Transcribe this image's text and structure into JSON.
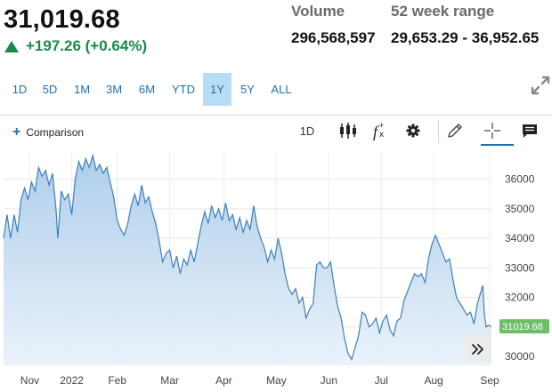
{
  "quote": {
    "price": "31,019.68",
    "change": "+197.26 (+0.64%)",
    "volume_label": "Volume",
    "volume_value": "296,568,597",
    "range_label": "52 week range",
    "range_value": "29,653.29 - 36,952.65"
  },
  "ranges": [
    {
      "label": "1D",
      "active": false
    },
    {
      "label": "5D",
      "active": false
    },
    {
      "label": "1M",
      "active": false
    },
    {
      "label": "3M",
      "active": false
    },
    {
      "label": "6M",
      "active": false
    },
    {
      "label": "YTD",
      "active": false
    },
    {
      "label": "1Y",
      "active": true
    },
    {
      "label": "5Y",
      "active": false
    },
    {
      "label": "ALL",
      "active": false
    }
  ],
  "toolbar": {
    "comparison_label": "Comparison",
    "interval_label": "1D",
    "icons": [
      "candlestick-icon",
      "function-icon",
      "gear-icon",
      "pencil-icon",
      "crosshair-icon",
      "comment-icon"
    ]
  },
  "colors": {
    "positive": "#168a4a",
    "accent": "#1f6fb2",
    "active_tab": "#b7dcf6",
    "line": "#3d7fb8",
    "price_tag": "#6cbf6a"
  },
  "chart_data": {
    "type": "area",
    "y_ticks": [
      30000,
      31000,
      32000,
      33000,
      34000,
      35000,
      36000
    ],
    "ylim": [
      29700,
      36950
    ],
    "x_tick_labels": [
      "Nov",
      "2022",
      "Feb",
      "Mar",
      "Apr",
      "May",
      "Jun",
      "Jul",
      "Aug",
      "Sep"
    ],
    "x_tick_positions": [
      15,
      39,
      65,
      95,
      126,
      156,
      186,
      216,
      246,
      278
    ],
    "last_price_label": "31019.68",
    "grid": true,
    "points": [
      [
        0,
        34000
      ],
      [
        2,
        34800
      ],
      [
        4,
        34000
      ],
      [
        6,
        34800
      ],
      [
        8,
        34200
      ],
      [
        10,
        35300
      ],
      [
        12,
        35700
      ],
      [
        14,
        35300
      ],
      [
        16,
        35900
      ],
      [
        18,
        35600
      ],
      [
        20,
        36400
      ],
      [
        22,
        36100
      ],
      [
        24,
        36300
      ],
      [
        26,
        35800
      ],
      [
        28,
        36200
      ],
      [
        30,
        35000
      ],
      [
        31,
        34000
      ],
      [
        33,
        35600
      ],
      [
        35,
        35300
      ],
      [
        37,
        35500
      ],
      [
        39,
        34800
      ],
      [
        41,
        36000
      ],
      [
        43,
        36600
      ],
      [
        45,
        36300
      ],
      [
        47,
        36700
      ],
      [
        49,
        36400
      ],
      [
        51,
        36800
      ],
      [
        53,
        36300
      ],
      [
        55,
        36500
      ],
      [
        57,
        36200
      ],
      [
        59,
        36400
      ],
      [
        61,
        35900
      ],
      [
        63,
        35400
      ],
      [
        65,
        34600
      ],
      [
        67,
        34300
      ],
      [
        69,
        34100
      ],
      [
        71,
        34500
      ],
      [
        73,
        35100
      ],
      [
        75,
        35500
      ],
      [
        77,
        35100
      ],
      [
        79,
        35800
      ],
      [
        81,
        35200
      ],
      [
        83,
        35400
      ],
      [
        85,
        34900
      ],
      [
        87,
        34500
      ],
      [
        89,
        33900
      ],
      [
        91,
        33200
      ],
      [
        93,
        33500
      ],
      [
        95,
        33600
      ],
      [
        97,
        33000
      ],
      [
        99,
        33400
      ],
      [
        101,
        32800
      ],
      [
        103,
        33300
      ],
      [
        105,
        33100
      ],
      [
        107,
        33600
      ],
      [
        109,
        33200
      ],
      [
        111,
        33800
      ],
      [
        113,
        34400
      ],
      [
        115,
        34900
      ],
      [
        117,
        34500
      ],
      [
        119,
        35100
      ],
      [
        121,
        34700
      ],
      [
        123,
        35000
      ],
      [
        125,
        34600
      ],
      [
        127,
        35200
      ],
      [
        129,
        34600
      ],
      [
        131,
        34800
      ],
      [
        133,
        34300
      ],
      [
        135,
        34700
      ],
      [
        137,
        34200
      ],
      [
        139,
        34600
      ],
      [
        141,
        34300
      ],
      [
        143,
        35100
      ],
      [
        145,
        34400
      ],
      [
        147,
        34000
      ],
      [
        149,
        33700
      ],
      [
        151,
        33200
      ],
      [
        153,
        33600
      ],
      [
        155,
        33300
      ],
      [
        157,
        34000
      ],
      [
        159,
        33500
      ],
      [
        161,
        32800
      ],
      [
        163,
        32300
      ],
      [
        165,
        32100
      ],
      [
        167,
        32300
      ],
      [
        169,
        31800
      ],
      [
        171,
        32000
      ],
      [
        173,
        31300
      ],
      [
        175,
        31600
      ],
      [
        177,
        31800
      ],
      [
        179,
        33100
      ],
      [
        181,
        33200
      ],
      [
        183,
        33000
      ],
      [
        185,
        33000
      ],
      [
        187,
        33200
      ],
      [
        189,
        32400
      ],
      [
        191,
        31700
      ],
      [
        193,
        31300
      ],
      [
        195,
        30600
      ],
      [
        197,
        30100
      ],
      [
        199,
        29900
      ],
      [
        201,
        30300
      ],
      [
        203,
        30700
      ],
      [
        205,
        31500
      ],
      [
        207,
        31400
      ],
      [
        209,
        31000
      ],
      [
        211,
        31100
      ],
      [
        213,
        31300
      ],
      [
        215,
        30800
      ],
      [
        217,
        31200
      ],
      [
        219,
        31400
      ],
      [
        221,
        30900
      ],
      [
        223,
        30700
      ],
      [
        225,
        31200
      ],
      [
        227,
        31300
      ],
      [
        229,
        31900
      ],
      [
        231,
        32200
      ],
      [
        233,
        32500
      ],
      [
        235,
        32800
      ],
      [
        237,
        32700
      ],
      [
        239,
        32800
      ],
      [
        241,
        32500
      ],
      [
        243,
        33300
      ],
      [
        245,
        33800
      ],
      [
        247,
        34100
      ],
      [
        249,
        33800
      ],
      [
        251,
        33500
      ],
      [
        253,
        33200
      ],
      [
        255,
        33300
      ],
      [
        257,
        32600
      ],
      [
        259,
        32000
      ],
      [
        261,
        31800
      ],
      [
        263,
        31600
      ],
      [
        265,
        31400
      ],
      [
        267,
        31500
      ],
      [
        269,
        31100
      ],
      [
        271,
        31800
      ],
      [
        273,
        32200
      ],
      [
        274,
        32400
      ],
      [
        275,
        31400
      ],
      [
        276,
        31000
      ],
      [
        277,
        31050
      ],
      [
        279,
        31019
      ]
    ]
  }
}
